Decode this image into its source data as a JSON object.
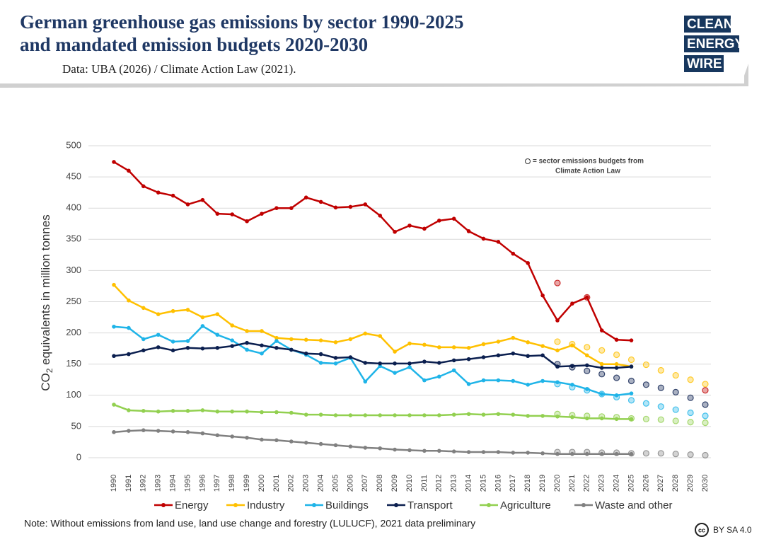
{
  "header": {
    "title_lines": [
      "German greenhouse gas emissions by sector 1990-2025",
      "and mandated emission budgets 2020-2030"
    ],
    "source": "Data: UBA (2026) / Climate Action Law (2021).",
    "logo": [
      "CLEAN",
      "ENERGY",
      "WIRE"
    ]
  },
  "chart_data": {
    "type": "line",
    "ylabel": [
      "CO",
      "2",
      " equivalents in million tonnes"
    ],
    "annotation": [
      "= sector emissions budgets from",
      "Climate Action Law"
    ],
    "categories": [
      "1990",
      "1991",
      "1992",
      "1993",
      "1994",
      "1995",
      "1996",
      "1997",
      "1998",
      "1999",
      "2000",
      "2001",
      "2002",
      "2003",
      "2004",
      "2005",
      "2006",
      "2007",
      "2008",
      "2009",
      "2010",
      "2011",
      "2012",
      "2013",
      "2014",
      "2015",
      "2016",
      "2017",
      "2018",
      "2019",
      "2020",
      "2021",
      "2022",
      "2023",
      "2024",
      "2025",
      "2026",
      "2027",
      "2028",
      "2029",
      "2030"
    ],
    "ylim": [
      0,
      500
    ],
    "yticks": [
      0,
      50,
      100,
      150,
      200,
      250,
      300,
      350,
      400,
      450,
      500
    ],
    "grid": true,
    "series": [
      {
        "name": "Energy",
        "color": "#c00000",
        "values": [
          474,
          460,
          435,
          425,
          420,
          406,
          413,
          391,
          390,
          379,
          391,
          400,
          400,
          417,
          410,
          401,
          402,
          406,
          388,
          362,
          372,
          367,
          380,
          383,
          363,
          351,
          346,
          327,
          312,
          260,
          220,
          247,
          257,
          204,
          189,
          188,
          null,
          null,
          null,
          null,
          null
        ],
        "budget": [
          null,
          null,
          null,
          null,
          null,
          null,
          null,
          null,
          null,
          null,
          null,
          null,
          null,
          null,
          null,
          null,
          null,
          null,
          null,
          null,
          null,
          null,
          null,
          null,
          null,
          null,
          null,
          null,
          null,
          null,
          280,
          null,
          257,
          null,
          null,
          null,
          null,
          null,
          null,
          null,
          108
        ]
      },
      {
        "name": "Industry",
        "color": "#ffc000",
        "values": [
          277,
          252,
          240,
          230,
          235,
          237,
          225,
          230,
          212,
          203,
          203,
          192,
          190,
          189,
          188,
          185,
          190,
          199,
          195,
          170,
          183,
          181,
          177,
          177,
          176,
          182,
          186,
          192,
          185,
          179,
          172,
          180,
          164,
          150,
          150,
          146,
          null,
          null,
          null,
          null,
          null
        ],
        "budget": [
          null,
          null,
          null,
          null,
          null,
          null,
          null,
          null,
          null,
          null,
          null,
          null,
          null,
          null,
          null,
          null,
          null,
          null,
          null,
          null,
          null,
          null,
          null,
          null,
          null,
          null,
          null,
          null,
          null,
          null,
          186,
          182,
          177,
          172,
          165,
          157,
          149,
          140,
          132,
          125,
          118
        ]
      },
      {
        "name": "Buildings",
        "color": "#1fb4e8",
        "values": [
          210,
          208,
          190,
          197,
          186,
          187,
          211,
          197,
          188,
          173,
          167,
          187,
          173,
          165,
          152,
          151,
          160,
          122,
          147,
          136,
          145,
          124,
          130,
          140,
          118,
          124,
          124,
          123,
          117,
          123,
          121,
          117,
          110,
          102,
          100,
          103,
          null,
          null,
          null,
          null,
          null
        ],
        "budget": [
          null,
          null,
          null,
          null,
          null,
          null,
          null,
          null,
          null,
          null,
          null,
          null,
          null,
          null,
          null,
          null,
          null,
          null,
          null,
          null,
          null,
          null,
          null,
          null,
          null,
          null,
          null,
          null,
          null,
          null,
          118,
          113,
          108,
          102,
          97,
          92,
          87,
          82,
          77,
          72,
          67
        ]
      },
      {
        "name": "Transport",
        "color": "#0b1f4f",
        "values": [
          163,
          166,
          172,
          177,
          172,
          176,
          175,
          176,
          179,
          184,
          180,
          176,
          173,
          167,
          166,
          160,
          161,
          152,
          151,
          151,
          151,
          154,
          152,
          156,
          158,
          161,
          164,
          167,
          163,
          164,
          146,
          147,
          148,
          144,
          144,
          146,
          null,
          null,
          null,
          null,
          null
        ],
        "budget": [
          null,
          null,
          null,
          null,
          null,
          null,
          null,
          null,
          null,
          null,
          null,
          null,
          null,
          null,
          null,
          null,
          null,
          null,
          null,
          null,
          null,
          null,
          null,
          null,
          null,
          null,
          null,
          null,
          null,
          null,
          150,
          145,
          139,
          134,
          128,
          123,
          117,
          112,
          105,
          96,
          85
        ]
      },
      {
        "name": "Agriculture",
        "color": "#92d050",
        "values": [
          85,
          76,
          75,
          74,
          75,
          75,
          76,
          74,
          74,
          74,
          73,
          73,
          72,
          69,
          69,
          68,
          68,
          68,
          68,
          68,
          68,
          68,
          68,
          69,
          70,
          69,
          70,
          69,
          67,
          67,
          66,
          65,
          63,
          63,
          62,
          62,
          null,
          null,
          null,
          null,
          null
        ],
        "budget": [
          null,
          null,
          null,
          null,
          null,
          null,
          null,
          null,
          null,
          null,
          null,
          null,
          null,
          null,
          null,
          null,
          null,
          null,
          null,
          null,
          null,
          null,
          null,
          null,
          null,
          null,
          null,
          null,
          null,
          null,
          70,
          68,
          67,
          66,
          65,
          63,
          62,
          61,
          59,
          57,
          56
        ]
      },
      {
        "name": "Waste and other",
        "color": "#808080",
        "values": [
          41,
          43,
          44,
          43,
          42,
          41,
          39,
          36,
          34,
          32,
          29,
          28,
          26,
          24,
          22,
          20,
          18,
          16,
          15,
          13,
          12,
          11,
          11,
          10,
          9,
          9,
          9,
          8,
          8,
          7,
          6,
          6,
          6,
          6,
          6,
          6,
          null,
          null,
          null,
          null,
          null
        ],
        "budget": [
          null,
          null,
          null,
          null,
          null,
          null,
          null,
          null,
          null,
          null,
          null,
          null,
          null,
          null,
          null,
          null,
          null,
          null,
          null,
          null,
          null,
          null,
          null,
          null,
          null,
          null,
          null,
          null,
          null,
          null,
          9,
          9,
          9,
          8,
          8,
          7,
          7,
          7,
          6,
          5,
          4
        ]
      }
    ]
  },
  "footer": {
    "note": "Note: Without emissions from land use, land use change and forestry (LULUCF), 2021 data preliminary",
    "license_icon": "cc",
    "license": "BY SA 4.0"
  }
}
